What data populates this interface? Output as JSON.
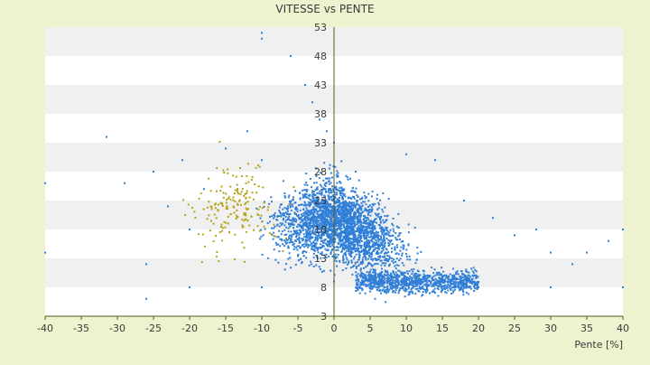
{
  "chart_data": {
    "type": "scatter",
    "title": "VITESSE vs PENTE",
    "xlabel": "Pente [%]",
    "ylabel": "",
    "xlim": [
      -40,
      40
    ],
    "ylim": [
      3,
      53
    ],
    "x_ticks": [
      "-40",
      "-35",
      "-30",
      "-25",
      "-20",
      "-15",
      "-10",
      "-5",
      "0",
      "5",
      "10",
      "15",
      "20",
      "25",
      "30",
      "35",
      "40"
    ],
    "y_ticks": [
      "3",
      "8",
      "13",
      "18",
      "23",
      "28",
      "33",
      "38",
      "43",
      "48",
      "53"
    ],
    "y_tick_values": [
      3,
      8,
      13,
      18,
      23,
      28,
      33,
      38,
      43,
      48,
      53
    ],
    "grid": "horizontal bands",
    "colors": {
      "background": "#eef2cf",
      "band_light": "#ffffff",
      "band_dark": "#f0f0f0",
      "points": "#2f7ed8",
      "points_secondary": "#b5a31b",
      "axis": "#555b1e"
    },
    "series": [
      {
        "marker": "dot",
        "color": "#2f7ed8",
        "points": [
          [
            -40,
            26
          ],
          [
            -40,
            14
          ],
          [
            -31.5,
            34
          ],
          [
            -29,
            26
          ],
          [
            -26,
            12
          ],
          [
            -25,
            28
          ],
          [
            -23,
            22
          ],
          [
            -21,
            30
          ],
          [
            -20,
            18
          ],
          [
            -18,
            25
          ],
          [
            -15,
            32
          ],
          [
            -12,
            35
          ],
          [
            -10,
            30
          ],
          [
            -10,
            52
          ],
          [
            -10,
            51
          ],
          [
            -6,
            48
          ],
          [
            -4,
            43
          ],
          [
            -3,
            40
          ],
          [
            -2,
            37
          ],
          [
            -1,
            35
          ],
          [
            0,
            33
          ],
          [
            3,
            28
          ],
          [
            6,
            24
          ],
          [
            10,
            31
          ],
          [
            14,
            30
          ],
          [
            18,
            23
          ],
          [
            22,
            20
          ],
          [
            25,
            17
          ],
          [
            28,
            18
          ],
          [
            30,
            14
          ],
          [
            33,
            12
          ],
          [
            35,
            14
          ],
          [
            38,
            16
          ],
          [
            40,
            18
          ],
          [
            40,
            8
          ],
          [
            30,
            8
          ],
          [
            20,
            8
          ],
          [
            10,
            9
          ],
          [
            0,
            9
          ],
          [
            -10,
            8
          ],
          [
            -20,
            8
          ],
          [
            -26,
            6
          ]
        ]
      }
    ]
  }
}
